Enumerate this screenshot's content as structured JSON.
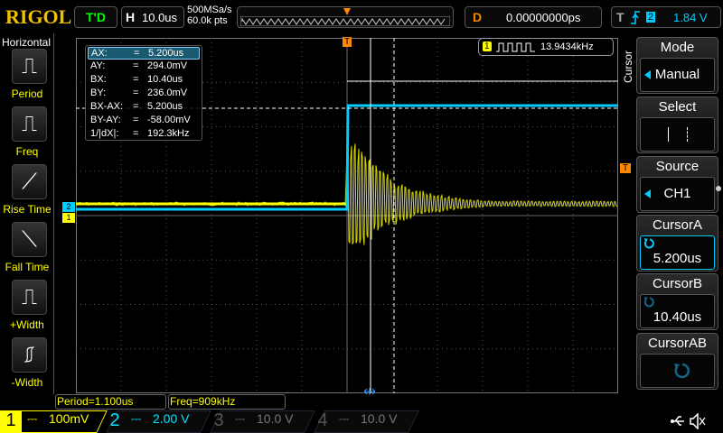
{
  "header": {
    "brand": "RIGOL",
    "run_state": "T'D",
    "horizontal_label": "H",
    "timebase": "10.0us",
    "sample_rate": "500MSa/s",
    "memory_depth": "60.0k pts",
    "delay_label": "D",
    "delay": "0.00000000ps",
    "trigger_label": "T",
    "trigger_source": "2",
    "trigger_level": "1.84 V"
  },
  "left_menu": {
    "title": "Horizontal",
    "items": [
      {
        "label": "Period",
        "icon": "period-icon"
      },
      {
        "label": "Freq",
        "icon": "freq-icon"
      },
      {
        "label": "Rise Time",
        "icon": "rise-time-icon"
      },
      {
        "label": "Fall Time",
        "icon": "fall-time-icon"
      },
      {
        "label": "+Width",
        "icon": "positive-width-icon"
      },
      {
        "label": "-Width",
        "icon": "negative-width-icon"
      }
    ]
  },
  "cursor_readout": [
    {
      "k": "AX:",
      "v": "5.200us"
    },
    {
      "k": "AY:",
      "v": "294.0mV"
    },
    {
      "k": "BX:",
      "v": "10.40us"
    },
    {
      "k": "BY:",
      "v": "236.0mV"
    },
    {
      "k": "BX-AX:",
      "v": "5.200us"
    },
    {
      "k": "BY-AY:",
      "v": "-58.00mV"
    },
    {
      "k": "1/|dX|:",
      "v": "192.3kHz"
    }
  ],
  "eq": "=",
  "freq_counter": {
    "channel": "1",
    "value": "13.9434kHz"
  },
  "markers": {
    "trigger": "T",
    "ch1": "1",
    "ch2": "2"
  },
  "measurements": {
    "period": "Period=1.100us",
    "freq": "Freq=909kHz"
  },
  "right_menu": {
    "tab": "Cursor",
    "mode_label": "Mode",
    "mode_value": "Manual",
    "select_label": "Select",
    "source_label": "Source",
    "source_value": "CH1",
    "cursor_a_label": "CursorA",
    "cursor_a_value": "5.200us",
    "cursor_b_label": "CursorB",
    "cursor_b_value": "10.40us",
    "cursor_ab_label": "CursorAB"
  },
  "channels": [
    {
      "num": "1",
      "scale": "100mV",
      "color": "#ffff00"
    },
    {
      "num": "2",
      "scale": "2.00 V",
      "color": "#00e5ff"
    },
    {
      "num": "3",
      "scale": "10.0 V",
      "color": "#ff00ff"
    },
    {
      "num": "4",
      "scale": "10.0 V",
      "color": "#3399ff"
    }
  ],
  "coupling": "⎓"
}
